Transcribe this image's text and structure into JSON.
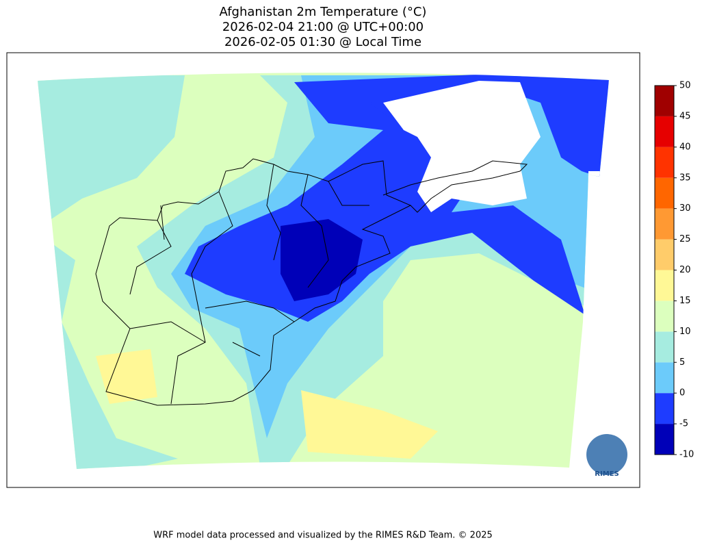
{
  "header": {
    "title_lines": [
      "Afghanistan 2m Temperature (°C)",
      "2026-02-04 21:00 @ UTC+00:00",
      "2026-02-05 01:30 @ Local Time"
    ]
  },
  "colorbar": {
    "lim": [
      -10,
      50
    ],
    "ticks": [
      -10,
      -5,
      0,
      5,
      10,
      15,
      20,
      25,
      30,
      35,
      40,
      45,
      50
    ],
    "colors": [
      "#0000b8",
      "#1e3cff",
      "#6ccbfa",
      "#a6ece0",
      "#dcffbe",
      "#fff896",
      "#ffcc6a",
      "#ff9933",
      "#ff6600",
      "#ff3300",
      "#e60000",
      "#a00000"
    ]
  },
  "logo": {
    "label": "RIMES"
  },
  "footer": "WRF model data processed and visualized by the RIMES R&D Team. © 2025"
}
